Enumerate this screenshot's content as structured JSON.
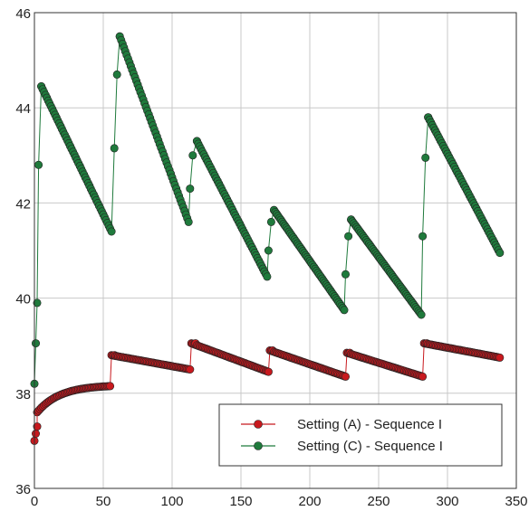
{
  "chart_data": {
    "type": "scatter",
    "title": "",
    "xlabel": "",
    "ylabel": "",
    "xlim": [
      0,
      350
    ],
    "ylim": [
      36,
      46
    ],
    "xticks": [
      0,
      50,
      100,
      150,
      200,
      250,
      300,
      350
    ],
    "yticks": [
      36,
      38,
      40,
      42,
      44,
      46
    ],
    "grid": true,
    "legend_position": "bottom-right",
    "series": [
      {
        "name": "Setting (A) - Sequence I",
        "color": "#c8191e",
        "segments": [
          {
            "x0": 0,
            "x1": 2,
            "y0": 37.0,
            "y1": 37.3
          },
          {
            "x0": 2,
            "x1": 55,
            "y0": 37.6,
            "y1": 38.15,
            "shape": "log"
          },
          {
            "x0": 56,
            "x1": 113,
            "y0": 38.8,
            "y1": 38.5
          },
          {
            "x0": 114,
            "x1": 170,
            "y0": 39.05,
            "y1": 38.45
          },
          {
            "x0": 171,
            "x1": 226,
            "y0": 38.9,
            "y1": 38.35
          },
          {
            "x0": 227,
            "x1": 282,
            "y0": 38.85,
            "y1": 38.35
          },
          {
            "x0": 283,
            "x1": 338,
            "y0": 39.05,
            "y1": 38.75
          }
        ],
        "rises": [
          [
            55,
            38.15,
            58,
            38.8
          ],
          [
            113,
            38.5,
            117,
            39.05
          ],
          [
            170,
            38.45,
            173,
            38.9
          ],
          [
            226,
            38.35,
            229,
            38.85
          ],
          [
            282,
            38.35,
            285,
            39.05
          ]
        ]
      },
      {
        "name": "Setting (C) - Sequence I",
        "color": "#1f7a3c",
        "segments": [
          {
            "x0": 0,
            "x1": 2,
            "y0": 38.2,
            "y1": 39.9
          },
          {
            "x0": 5,
            "x1": 56,
            "y0": 44.45,
            "y1": 41.4
          },
          {
            "x0": 62,
            "x1": 112,
            "y0": 45.5,
            "y1": 41.6
          },
          {
            "x0": 118,
            "x1": 169,
            "y0": 43.3,
            "y1": 40.45
          },
          {
            "x0": 174,
            "x1": 225,
            "y0": 41.85,
            "y1": 39.75
          },
          {
            "x0": 230,
            "x1": 281,
            "y0": 41.65,
            "y1": 39.65
          },
          {
            "x0": 286,
            "x1": 338,
            "y0": 43.8,
            "y1": 40.95
          }
        ],
        "rises": [
          [
            2,
            39.9,
            3,
            42.8
          ],
          [
            3,
            42.8,
            5,
            44.45
          ],
          [
            56,
            41.4,
            58,
            43.15
          ],
          [
            58,
            43.15,
            60,
            44.7
          ],
          [
            60,
            44.7,
            62,
            45.5
          ],
          [
            112,
            41.6,
            113,
            42.3
          ],
          [
            113,
            42.3,
            115,
            43.0
          ],
          [
            115,
            43.0,
            118,
            43.3
          ],
          [
            169,
            40.45,
            170,
            41.0
          ],
          [
            170,
            41.0,
            172,
            41.6
          ],
          [
            172,
            41.6,
            174,
            41.85
          ],
          [
            225,
            39.75,
            226,
            40.5
          ],
          [
            226,
            40.5,
            228,
            41.3
          ],
          [
            228,
            41.3,
            230,
            41.65
          ],
          [
            281,
            39.65,
            282,
            41.3
          ],
          [
            282,
            41.3,
            284,
            42.95
          ],
          [
            284,
            42.95,
            286,
            43.8
          ]
        ]
      }
    ]
  }
}
